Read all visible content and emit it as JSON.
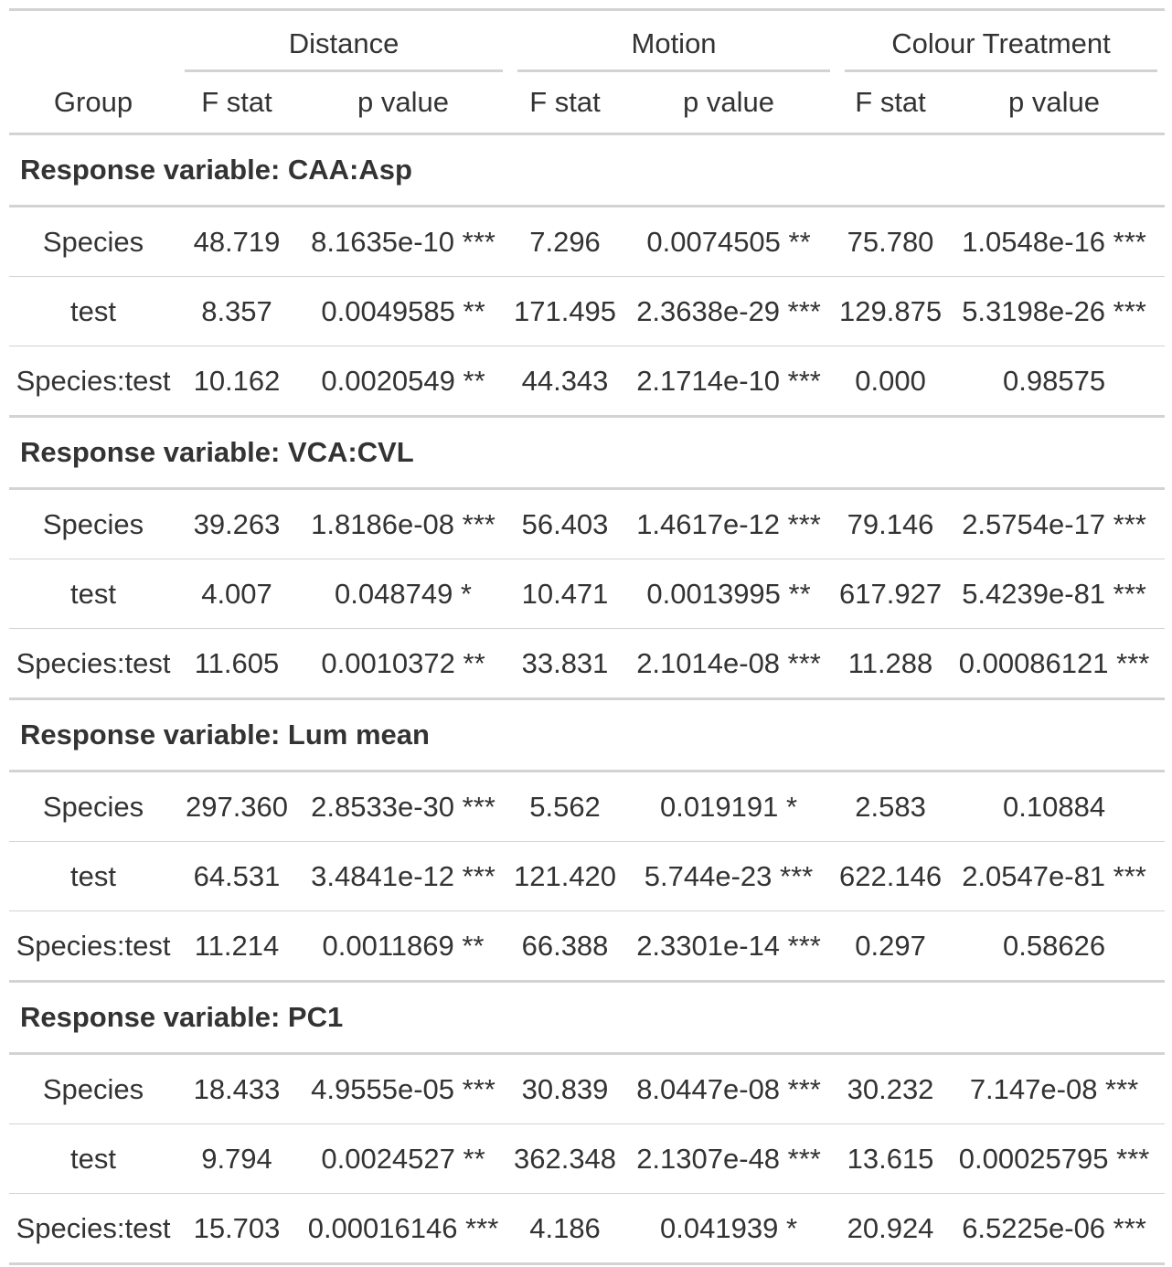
{
  "spanners": [
    "Distance",
    "Motion",
    "Colour Treatment"
  ],
  "columns": [
    "Group",
    "F stat",
    "p value",
    "F stat",
    "p value",
    "F stat",
    "p value"
  ],
  "groups": [
    {
      "title": "Response variable: CAA:Asp",
      "rows": [
        [
          "Species",
          "48.719",
          "8.1635e-10 ***",
          "7.296",
          "0.0074505 **",
          "75.780",
          "1.0548e-16 ***"
        ],
        [
          "test",
          "8.357",
          "0.0049585 **",
          "171.495",
          "2.3638e-29 ***",
          "129.875",
          "5.3198e-26 ***"
        ],
        [
          "Species:test",
          "10.162",
          "0.0020549 **",
          "44.343",
          "2.1714e-10 ***",
          "0.000",
          "0.98575"
        ]
      ]
    },
    {
      "title": "Response variable: VCA:CVL",
      "rows": [
        [
          "Species",
          "39.263",
          "1.8186e-08 ***",
          "56.403",
          "1.4617e-12 ***",
          "79.146",
          "2.5754e-17 ***"
        ],
        [
          "test",
          "4.007",
          "0.048749 *",
          "10.471",
          "0.0013995 **",
          "617.927",
          "5.4239e-81 ***"
        ],
        [
          "Species:test",
          "11.605",
          "0.0010372 **",
          "33.831",
          "2.1014e-08 ***",
          "11.288",
          "0.00086121 ***"
        ]
      ]
    },
    {
      "title": "Response variable: Lum mean",
      "rows": [
        [
          "Species",
          "297.360",
          "2.8533e-30 ***",
          "5.562",
          "0.019191 *",
          "2.583",
          "0.10884"
        ],
        [
          "test",
          "64.531",
          "3.4841e-12 ***",
          "121.420",
          "5.744e-23 ***",
          "622.146",
          "2.0547e-81 ***"
        ],
        [
          "Species:test",
          "11.214",
          "0.0011869 **",
          "66.388",
          "2.3301e-14 ***",
          "0.297",
          "0.58626"
        ]
      ]
    },
    {
      "title": "Response variable: PC1",
      "rows": [
        [
          "Species",
          "18.433",
          "4.9555e-05 ***",
          "30.839",
          "8.0447e-08 ***",
          "30.232",
          "7.147e-08 ***"
        ],
        [
          "test",
          "9.794",
          "0.0024527 **",
          "362.348",
          "2.1307e-48 ***",
          "13.615",
          "0.00025795 ***"
        ],
        [
          "Species:test",
          "15.703",
          "0.00016146 ***",
          "4.186",
          "0.041939 *",
          "20.924",
          "6.5225e-06 ***"
        ]
      ]
    }
  ]
}
